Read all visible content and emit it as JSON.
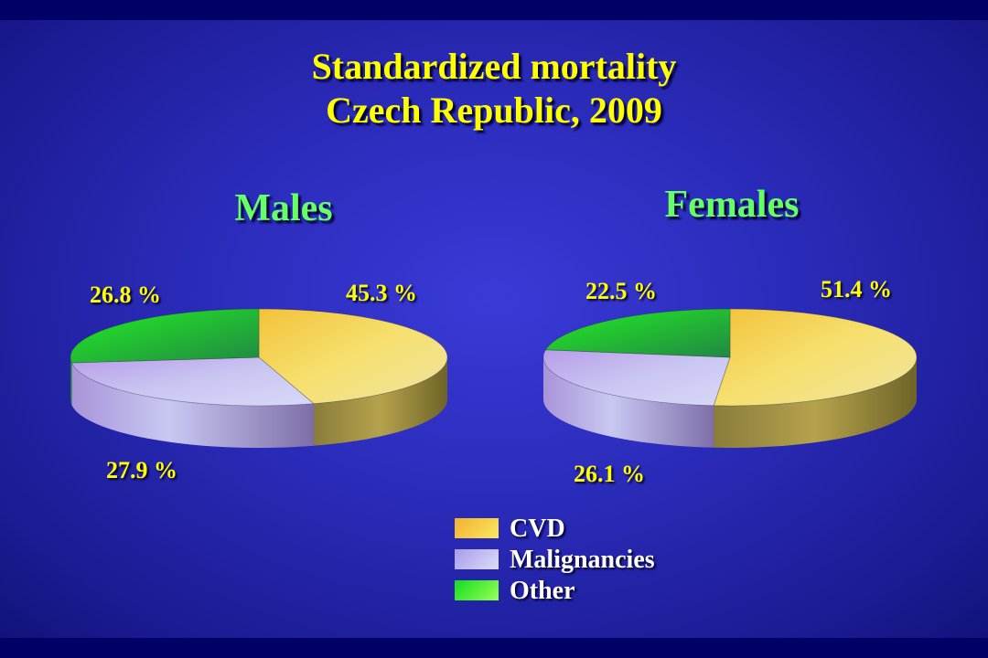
{
  "title_line1": "Standardized mortality",
  "title_line2": "Czech Republic, 2009",
  "chart_data": [
    {
      "type": "pie",
      "title": "Males",
      "categories": [
        "CVD",
        "Malignancies",
        "Other"
      ],
      "values": [
        45.3,
        27.9,
        26.8
      ],
      "labels": [
        "45.3 %",
        "27.9 %",
        "26.8 %"
      ]
    },
    {
      "type": "pie",
      "title": "Females",
      "categories": [
        "CVD",
        "Malignancies",
        "Other"
      ],
      "values": [
        51.4,
        26.1,
        22.5
      ],
      "labels": [
        "51.4 %",
        "26.1 %",
        "22.5 %"
      ]
    }
  ],
  "legend": {
    "placement": "bottom-center",
    "items": [
      {
        "label": "CVD",
        "color": "#f7d94a"
      },
      {
        "label": "Malignancies",
        "color": "#c8c8f4"
      },
      {
        "label": "Other",
        "color": "#33ee33"
      }
    ]
  },
  "colors": {
    "title": "#ffff00",
    "chart_title": "#66ff66",
    "background": "#2a2ab8"
  }
}
